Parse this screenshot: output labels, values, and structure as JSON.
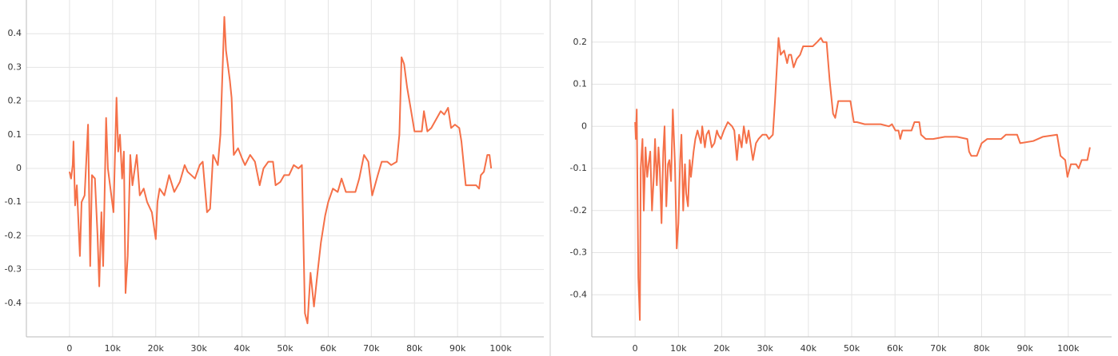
{
  "chart_data": [
    {
      "type": "line",
      "color": "#f57048",
      "grid": true,
      "xlim": [
        -10000,
        110000
      ],
      "ylim": [
        -0.5,
        0.5
      ],
      "xticks": [
        0,
        {
          "value": 10000,
          "label": "10k"
        },
        {
          "value": 20000,
          "label": "20k"
        },
        {
          "value": 30000,
          "label": "30k"
        },
        {
          "value": 40000,
          "label": "40k"
        },
        {
          "value": 50000,
          "label": "50k"
        },
        {
          "value": 60000,
          "label": "60k"
        },
        {
          "value": 70000,
          "label": "70k"
        },
        {
          "value": 80000,
          "label": "80k"
        },
        {
          "value": 90000,
          "label": "90k"
        },
        {
          "value": 100000,
          "label": "100k"
        }
      ],
      "yticks": [
        -0.4,
        -0.3,
        -0.2,
        -0.1,
        0,
        0.1,
        0.2,
        0.3,
        0.4
      ],
      "x": [
        0,
        370,
        740,
        930,
        1300,
        1700,
        2400,
        2800,
        3500,
        4300,
        4800,
        5200,
        5900,
        6500,
        6900,
        7400,
        7800,
        8100,
        8500,
        8900,
        10200,
        10900,
        11300,
        11700,
        12200,
        12600,
        13000,
        13500,
        14100,
        14600,
        15600,
        16300,
        17200,
        18000,
        19100,
        20000,
        20400,
        20900,
        22000,
        23100,
        24300,
        25600,
        26700,
        27400,
        29100,
        30200,
        30900,
        31900,
        32600,
        33300,
        34400,
        35000,
        35900,
        36300,
        37200,
        37600,
        38100,
        39100,
        40000,
        40700,
        41900,
        43000,
        44100,
        45000,
        46100,
        47200,
        47800,
        48900,
        49800,
        50900,
        52000,
        53100,
        53900,
        54600,
        55200,
        55900,
        56700,
        57600,
        58300,
        59300,
        60000,
        61100,
        62200,
        63100,
        64100,
        66300,
        67200,
        68300,
        69300,
        70200,
        71500,
        72400,
        73700,
        74600,
        75900,
        76500,
        77000,
        77600,
        78300,
        79100,
        80000,
        81700,
        82200,
        83000,
        83900,
        86100,
        86900,
        87800,
        88500,
        89400,
        90400,
        90900,
        91900,
        94300,
        95000,
        95400,
        96100,
        96900,
        97400,
        97800
      ],
      "values": [
        -0.01,
        -0.03,
        0.01,
        0.08,
        -0.11,
        -0.05,
        -0.26,
        -0.1,
        -0.08,
        0.13,
        -0.29,
        -0.02,
        -0.03,
        -0.2,
        -0.35,
        -0.13,
        -0.29,
        -0.1,
        0.15,
        0.0,
        -0.13,
        0.21,
        0.05,
        0.1,
        -0.03,
        0.05,
        -0.37,
        -0.26,
        0.04,
        -0.05,
        0.04,
        -0.08,
        -0.06,
        -0.1,
        -0.13,
        -0.21,
        -0.1,
        -0.06,
        -0.08,
        -0.02,
        -0.07,
        -0.04,
        0.01,
        -0.01,
        -0.03,
        0.01,
        0.02,
        -0.13,
        -0.12,
        0.04,
        0.01,
        0.1,
        0.45,
        0.35,
        0.26,
        0.21,
        0.04,
        0.06,
        0.03,
        0.01,
        0.04,
        0.02,
        -0.05,
        0.0,
        0.02,
        0.02,
        -0.05,
        -0.04,
        -0.02,
        -0.02,
        0.01,
        0.0,
        0.01,
        -0.43,
        -0.46,
        -0.31,
        -0.41,
        -0.3,
        -0.22,
        -0.14,
        -0.1,
        -0.06,
        -0.07,
        -0.03,
        -0.07,
        -0.07,
        -0.03,
        0.04,
        0.02,
        -0.08,
        -0.02,
        0.02,
        0.02,
        0.01,
        0.02,
        0.1,
        0.33,
        0.31,
        0.24,
        0.18,
        0.11,
        0.11,
        0.17,
        0.11,
        0.12,
        0.17,
        0.16,
        0.18,
        0.12,
        0.13,
        0.12,
        0.08,
        -0.05,
        -0.05,
        -0.06,
        -0.02,
        -0.01,
        0.04,
        0.04,
        0.0
      ]
    },
    {
      "type": "line",
      "color": "#f57048",
      "grid": true,
      "xlim": [
        -10000,
        110000
      ],
      "ylim": [
        -0.5,
        0.3
      ],
      "xticks": [
        0,
        {
          "value": 10000,
          "label": "10k"
        },
        {
          "value": 20000,
          "label": "20k"
        },
        {
          "value": 30000,
          "label": "30k"
        },
        {
          "value": 40000,
          "label": "40k"
        },
        {
          "value": 50000,
          "label": "50k"
        },
        {
          "value": 60000,
          "label": "60k"
        },
        {
          "value": 70000,
          "label": "70k"
        },
        {
          "value": 80000,
          "label": "80k"
        },
        {
          "value": 90000,
          "label": "90k"
        },
        {
          "value": 100000,
          "label": "100k"
        }
      ],
      "yticks": [
        -0.4,
        -0.3,
        -0.2,
        -0.1,
        0,
        0.1,
        0.2
      ],
      "x": [
        0,
        180,
        370,
        740,
        1100,
        1300,
        1700,
        2000,
        2400,
        2800,
        3100,
        3500,
        3900,
        4300,
        4600,
        5000,
        5400,
        5700,
        6100,
        6500,
        6800,
        7200,
        7600,
        7900,
        8300,
        8700,
        9200,
        9600,
        10000,
        10400,
        10700,
        11100,
        11500,
        11800,
        12200,
        12600,
        12900,
        13500,
        13900,
        14400,
        15200,
        15500,
        16100,
        16500,
        17000,
        17700,
        18300,
        18900,
        19200,
        19800,
        20500,
        21400,
        22400,
        22900,
        23500,
        24000,
        24600,
        25100,
        25700,
        26200,
        27200,
        27900,
        28500,
        29400,
        30300,
        30900,
        31800,
        32300,
        33100,
        33600,
        34400,
        35100,
        35500,
        36000,
        36600,
        37300,
        38100,
        38800,
        39900,
        41000,
        42000,
        42900,
        43400,
        44200,
        44900,
        45700,
        46200,
        46900,
        49700,
        50500,
        51200,
        53000,
        56700,
        58600,
        59300,
        60100,
        60800,
        61200,
        61700,
        62300,
        63800,
        64500,
        65600,
        66000,
        67100,
        68800,
        71500,
        74300,
        76700,
        77100,
        77600,
        78900,
        80000,
        81300,
        82600,
        84500,
        85600,
        88200,
        88900,
        91900,
        94100,
        97400,
        98200,
        99300,
        99800,
        100600,
        101800,
        102400,
        103100,
        104400,
        105000
      ],
      "values": [
        0.01,
        -0.03,
        0.04,
        -0.36,
        -0.46,
        -0.1,
        -0.03,
        -0.2,
        -0.05,
        -0.12,
        -0.09,
        -0.06,
        -0.2,
        -0.12,
        -0.03,
        -0.14,
        -0.05,
        -0.1,
        -0.23,
        -0.06,
        0.0,
        -0.19,
        -0.09,
        -0.08,
        -0.13,
        0.04,
        -0.09,
        -0.29,
        -0.23,
        -0.08,
        -0.02,
        -0.2,
        -0.09,
        -0.16,
        -0.19,
        -0.08,
        -0.12,
        -0.06,
        -0.03,
        -0.01,
        -0.04,
        0.0,
        -0.05,
        -0.02,
        -0.01,
        -0.05,
        -0.04,
        -0.01,
        -0.02,
        -0.03,
        -0.01,
        0.01,
        0.0,
        -0.01,
        -0.08,
        -0.02,
        -0.05,
        0.0,
        -0.04,
        -0.01,
        -0.08,
        -0.04,
        -0.03,
        -0.02,
        -0.02,
        -0.03,
        -0.02,
        0.06,
        0.21,
        0.17,
        0.18,
        0.15,
        0.17,
        0.17,
        0.14,
        0.16,
        0.17,
        0.19,
        0.19,
        0.19,
        0.2,
        0.21,
        0.2,
        0.2,
        0.11,
        0.03,
        0.02,
        0.06,
        0.06,
        0.01,
        0.01,
        0.005,
        0.005,
        0.0,
        0.005,
        -0.01,
        -0.01,
        -0.03,
        -0.01,
        -0.01,
        -0.01,
        0.01,
        0.01,
        -0.02,
        -0.03,
        -0.03,
        -0.025,
        -0.025,
        -0.03,
        -0.06,
        -0.07,
        -0.07,
        -0.04,
        -0.03,
        -0.03,
        -0.03,
        -0.02,
        -0.02,
        -0.04,
        -0.035,
        -0.025,
        -0.02,
        -0.07,
        -0.08,
        -0.12,
        -0.09,
        -0.09,
        -0.1,
        -0.08,
        -0.08,
        -0.05
      ]
    }
  ]
}
